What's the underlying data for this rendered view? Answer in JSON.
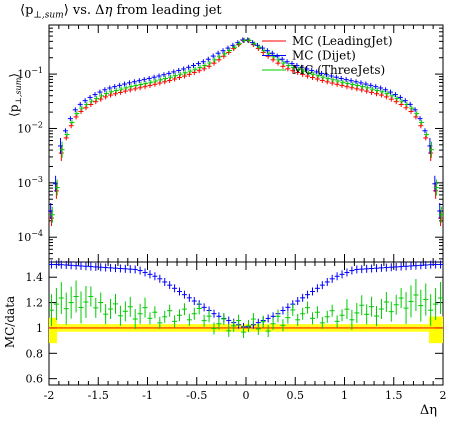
{
  "chart_data": [
    {
      "type": "scatter",
      "panel": "main",
      "title": "⟨p⊥,sum⟩ vs. Δη from leading jet",
      "title_parts": {
        "lhs": "⟨p",
        "sub": "⊥,sum",
        "rhs": "⟩ vs. Δ",
        "eta": "η",
        "tail": " from leading jet"
      },
      "ylabel": "⟨p⊥,sum⟩",
      "ylabel_parts": {
        "lhs": "⟨p",
        "sub": "⊥,sum",
        "rhs": "⟩"
      },
      "xlabel": "Δη",
      "xlim": [
        -2,
        2
      ],
      "ylim": [
        3.5e-05,
        0.8
      ],
      "yscale": "log",
      "y_ticks": [
        {
          "value": 0.1,
          "base": "10",
          "exp": "−1"
        },
        {
          "value": 0.01,
          "base": "10",
          "exp": "−2"
        },
        {
          "value": 0.001,
          "base": "10",
          "exp": "−3"
        },
        {
          "value": 0.0001,
          "base": "10",
          "exp": "−4"
        }
      ],
      "legend_position": "top-right",
      "series": [
        {
          "name": "MC (LeadingJet)",
          "color": "#ff0000"
        },
        {
          "name": "MC (Dijet)",
          "color": "#0000ff"
        },
        {
          "name": "MC (ThreeJets)",
          "color": "#00cc00"
        }
      ],
      "profile_note": "Symmetric profile in Δη: peak ≈0.45 at Δη=0, steep fall near |Δη|≈1.95",
      "x": [
        -1.95,
        -1.9,
        -1.85,
        -1.8,
        -1.75,
        -1.7,
        -1.6,
        -1.5,
        -1.4,
        -1.2,
        -1.0,
        -0.8,
        -0.6,
        -0.4,
        -0.3,
        -0.2,
        -0.1,
        0.0,
        0.1,
        0.2,
        0.3,
        0.4,
        0.6,
        0.8,
        1.0,
        1.2,
        1.4,
        1.5,
        1.6,
        1.7,
        1.75,
        1.8,
        1.85,
        1.9,
        1.95
      ],
      "leadingjet_values": [
        0.00025,
        0.0025,
        0.005,
        0.009,
        0.014,
        0.019,
        0.026,
        0.033,
        0.04,
        0.05,
        0.06,
        0.074,
        0.095,
        0.13,
        0.17,
        0.23,
        0.32,
        0.45,
        0.32,
        0.23,
        0.17,
        0.13,
        0.095,
        0.074,
        0.06,
        0.05,
        0.04,
        0.033,
        0.026,
        0.019,
        0.014,
        0.009,
        0.005,
        0.0025,
        0.00025
      ]
    },
    {
      "type": "scatter",
      "panel": "ratio",
      "ylabel": "MC/data",
      "xlabel": "Δη",
      "xlim": [
        -2,
        2
      ],
      "ylim": [
        0.55,
        1.52
      ],
      "y_ticks": [
        "0.6",
        "0.8",
        "1",
        "1.2",
        "1.4"
      ],
      "x_ticks": [
        "-2",
        "-1.5",
        "-1",
        "-0.5",
        "0",
        "0.5",
        "1",
        "1.5",
        "2"
      ],
      "dijet_ratio": {
        "x": [
          -1.9,
          -1.7,
          -1.5,
          -1.3,
          -1.1,
          -0.9,
          -0.7,
          -0.5,
          -0.3,
          -0.15,
          0.0,
          0.15,
          0.3,
          0.5,
          0.7,
          0.9,
          1.1,
          1.3,
          1.5,
          1.7,
          1.9
        ],
        "y": [
          1.5,
          1.49,
          1.48,
          1.47,
          1.46,
          1.4,
          1.3,
          1.2,
          1.1,
          1.05,
          1.0,
          1.05,
          1.1,
          1.2,
          1.3,
          1.4,
          1.46,
          1.47,
          1.48,
          1.49,
          1.5
        ]
      },
      "threejets_ratio": {
        "x": [
          -1.9,
          -1.7,
          -1.5,
          -1.3,
          -1.1,
          -0.9,
          -0.7,
          -0.5,
          -0.3,
          -0.15,
          0.0,
          0.15,
          0.3,
          0.5,
          0.7,
          0.9,
          1.1,
          1.3,
          1.5,
          1.7,
          1.9
        ],
        "y": [
          1.2,
          1.2,
          1.18,
          1.15,
          1.1,
          1.1,
          1.1,
          1.1,
          1.05,
          1.02,
          1.0,
          1.02,
          1.05,
          1.1,
          1.1,
          1.1,
          1.1,
          1.15,
          1.18,
          1.2,
          1.2
        ]
      },
      "leadingjet_ratio": 1.0,
      "band_color": "#ffff00"
    }
  ]
}
